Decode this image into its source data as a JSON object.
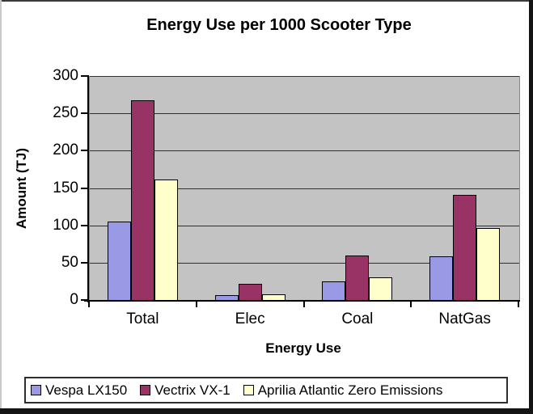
{
  "chart_data": {
    "type": "bar",
    "title": "Energy Use per 1000 Scooter Type",
    "xlabel": "Energy Use",
    "ylabel": "Amount (TJ)",
    "categories": [
      "Total",
      "Elec",
      "Coal",
      "NatGas"
    ],
    "series": [
      {
        "name": "Vespa LX150",
        "color": "#9999e6",
        "values": [
          105,
          7,
          25,
          58
        ]
      },
      {
        "name": "Vectrix VX-1",
        "color": "#993366",
        "values": [
          268,
          22,
          60,
          141
        ]
      },
      {
        "name": "Aprilia Atlantic Zero Emissions",
        "color": "#ffffcc",
        "values": [
          161,
          8,
          30,
          96
        ]
      }
    ],
    "ylim": [
      0,
      300
    ],
    "yticks": [
      0,
      50,
      100,
      150,
      200,
      250,
      300
    ],
    "grid": true,
    "legend_position": "bottom",
    "plot_bg": "#c3c3c3"
  }
}
